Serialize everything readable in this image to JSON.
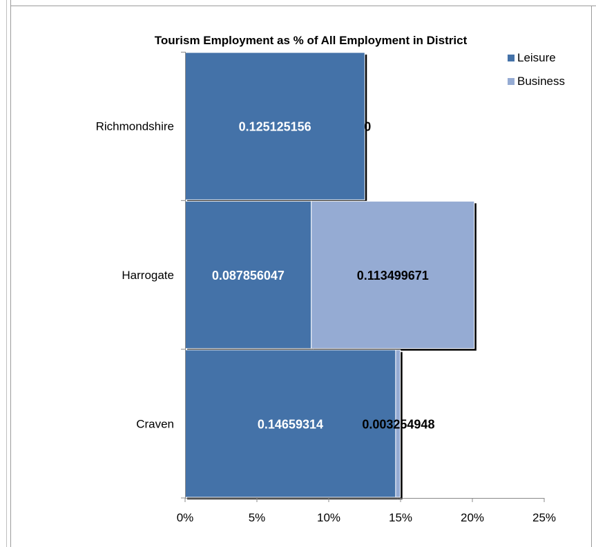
{
  "chart_data": {
    "type": "bar",
    "orientation": "horizontal",
    "stacked": true,
    "title": "Tourism Employment as % of All Employment in District",
    "categories": [
      "Richmondshire",
      "Harrogate",
      "Craven"
    ],
    "series": [
      {
        "name": "Leisure",
        "color": "#4472A8",
        "values": [
          0.125125156,
          0.087856047,
          0.14659314
        ],
        "labels": [
          "0.125125156",
          "0.087856047",
          "0.14659314"
        ]
      },
      {
        "name": "Business",
        "color": "#95ABD3",
        "values": [
          0,
          0.113499671,
          0.003254948
        ],
        "labels": [
          "0",
          "0.113499671",
          "0.003254948"
        ]
      }
    ],
    "x_ticks": [
      0,
      0.05,
      0.1,
      0.15,
      0.2,
      0.25
    ],
    "x_tick_labels": [
      "0%",
      "5%",
      "10%",
      "15%",
      "20%",
      "25%"
    ],
    "xlim": [
      0,
      0.25
    ],
    "xlabel": "",
    "ylabel": "",
    "grid": false,
    "legend": "top-right"
  }
}
